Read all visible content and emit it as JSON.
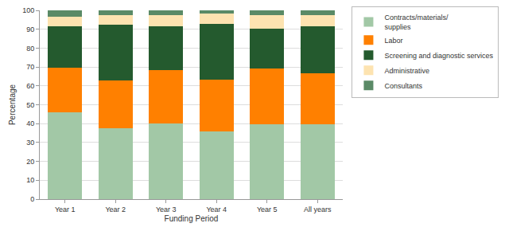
{
  "chart_data": {
    "type": "bar",
    "stacked": true,
    "grid": true,
    "legend": "right",
    "x_label": "Funding Period",
    "y_label": "Percentage",
    "categories": [
      "Year 1",
      "Year 2",
      "Year 3",
      "Year 4",
      "Year 5",
      "All years"
    ],
    "series": [
      {
        "name": "Contracts/materials/ supplies",
        "color": "#a2c8a6",
        "values": [
          46,
          37.5,
          40,
          36,
          39.5,
          39.5
        ]
      },
      {
        "name": "Labor",
        "color": "#ff8000",
        "values": [
          23.5,
          25.5,
          28.5,
          27.5,
          29.5,
          27
        ]
      },
      {
        "name": "Screening and diagnostic services",
        "color": "#245a2e",
        "values": [
          22,
          29.5,
          23,
          29.5,
          21.5,
          25
        ]
      },
      {
        "name": "Administrative",
        "color": "#fde3b0",
        "values": [
          5,
          5,
          6,
          5.5,
          7,
          6
        ]
      },
      {
        "name": "Consultants",
        "color": "#5a8a66",
        "values": [
          3.5,
          2.5,
          2.5,
          1.5,
          2.5,
          2.5
        ]
      }
    ],
    "ylim": [
      0,
      100
    ],
    "yticks": [
      0,
      10,
      20,
      30,
      40,
      50,
      60,
      70,
      80,
      90,
      100
    ]
  }
}
